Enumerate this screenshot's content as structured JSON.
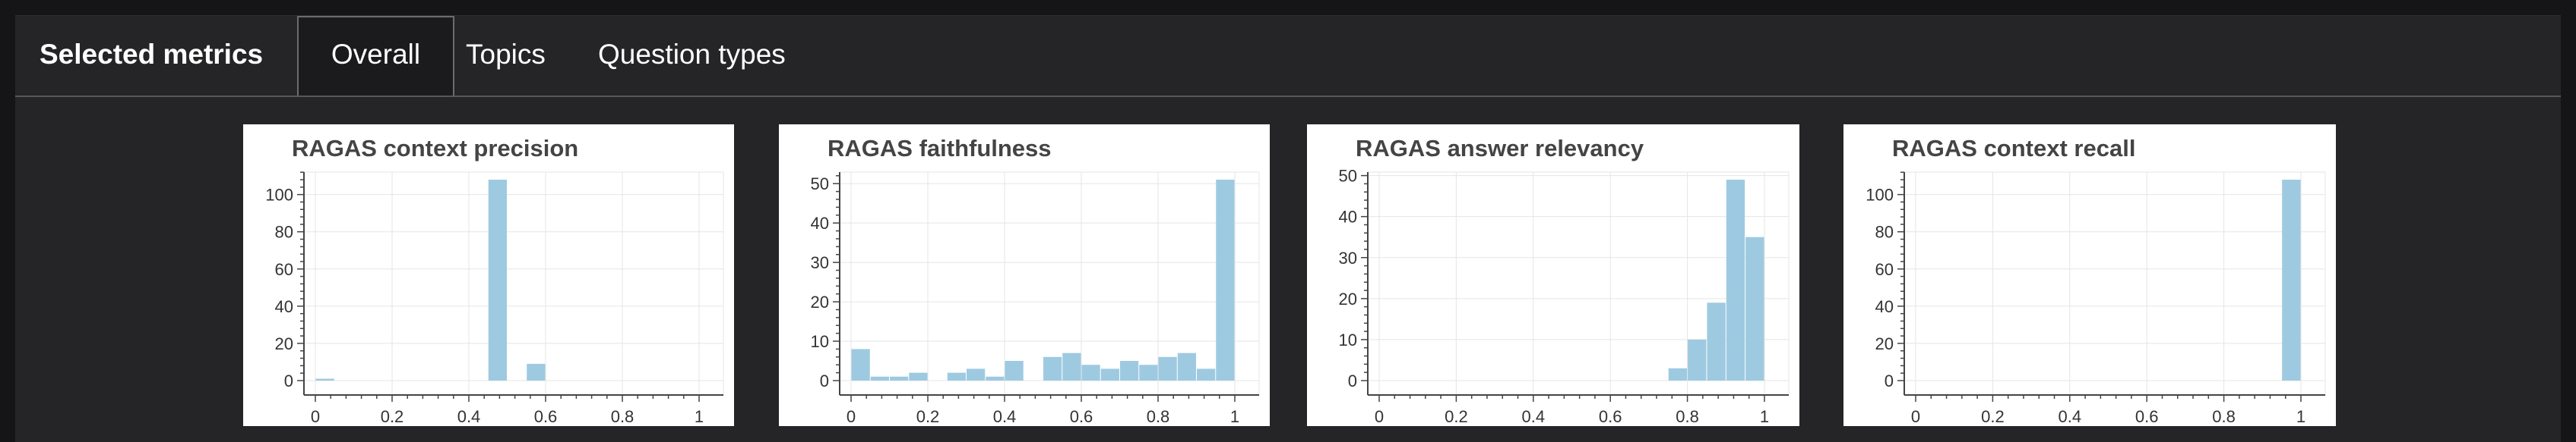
{
  "header": {
    "title": "Selected metrics",
    "tabs": [
      {
        "label": "Overall",
        "active": true
      },
      {
        "label": "Topics",
        "active": false
      },
      {
        "label": "Question types",
        "active": false
      }
    ]
  },
  "colors": {
    "background": "#151517",
    "panel": "#252527",
    "bar": "#9ecae1",
    "grid": "#e5e5e5",
    "axis": "#444444"
  },
  "chart_data": [
    {
      "type": "bar",
      "title": "RAGAS context precision",
      "x_ticks": [
        0,
        0.2,
        0.4,
        0.6,
        0.8,
        1
      ],
      "y_ticks": [
        0,
        20,
        40,
        60,
        80,
        100
      ],
      "xlim": [
        0,
        1
      ],
      "ylim": [
        0,
        108
      ],
      "bin_width": 0.05,
      "bins": [
        [
          0.0,
          1
        ],
        [
          0.45,
          108
        ],
        [
          0.55,
          9
        ]
      ],
      "grid": true
    },
    {
      "type": "bar",
      "title": "RAGAS faithfulness",
      "x_ticks": [
        0,
        0.2,
        0.4,
        0.6,
        0.8,
        1
      ],
      "y_ticks": [
        0,
        10,
        20,
        30,
        40,
        50
      ],
      "xlim": [
        0,
        1
      ],
      "ylim": [
        0,
        51
      ],
      "bin_width": 0.05,
      "bins": [
        [
          0.0,
          8
        ],
        [
          0.05,
          1
        ],
        [
          0.1,
          1
        ],
        [
          0.15,
          2
        ],
        [
          0.25,
          2
        ],
        [
          0.3,
          3
        ],
        [
          0.35,
          1
        ],
        [
          0.4,
          5
        ],
        [
          0.5,
          6
        ],
        [
          0.55,
          7
        ],
        [
          0.6,
          4
        ],
        [
          0.65,
          3
        ],
        [
          0.7,
          5
        ],
        [
          0.75,
          4
        ],
        [
          0.8,
          6
        ],
        [
          0.85,
          7
        ],
        [
          0.9,
          3
        ],
        [
          0.95,
          51
        ]
      ],
      "grid": true
    },
    {
      "type": "bar",
      "title": "RAGAS answer relevancy",
      "x_ticks": [
        0,
        0.2,
        0.4,
        0.6,
        0.8,
        1
      ],
      "y_ticks": [
        0,
        10,
        20,
        30,
        40,
        50
      ],
      "xlim": [
        0,
        1
      ],
      "ylim": [
        0,
        49
      ],
      "bin_width": 0.05,
      "bins": [
        [
          0.75,
          3
        ],
        [
          0.8,
          10
        ],
        [
          0.85,
          19
        ],
        [
          0.9,
          49
        ],
        [
          0.95,
          35
        ]
      ],
      "grid": true
    },
    {
      "type": "bar",
      "title": "RAGAS context recall",
      "x_ticks": [
        0,
        0.2,
        0.4,
        0.6,
        0.8,
        1
      ],
      "y_ticks": [
        0,
        20,
        40,
        60,
        80,
        100
      ],
      "xlim": [
        0,
        1
      ],
      "ylim": [
        0,
        108
      ],
      "bin_width": 0.05,
      "bins": [
        [
          0.95,
          108
        ]
      ],
      "grid": true
    }
  ]
}
